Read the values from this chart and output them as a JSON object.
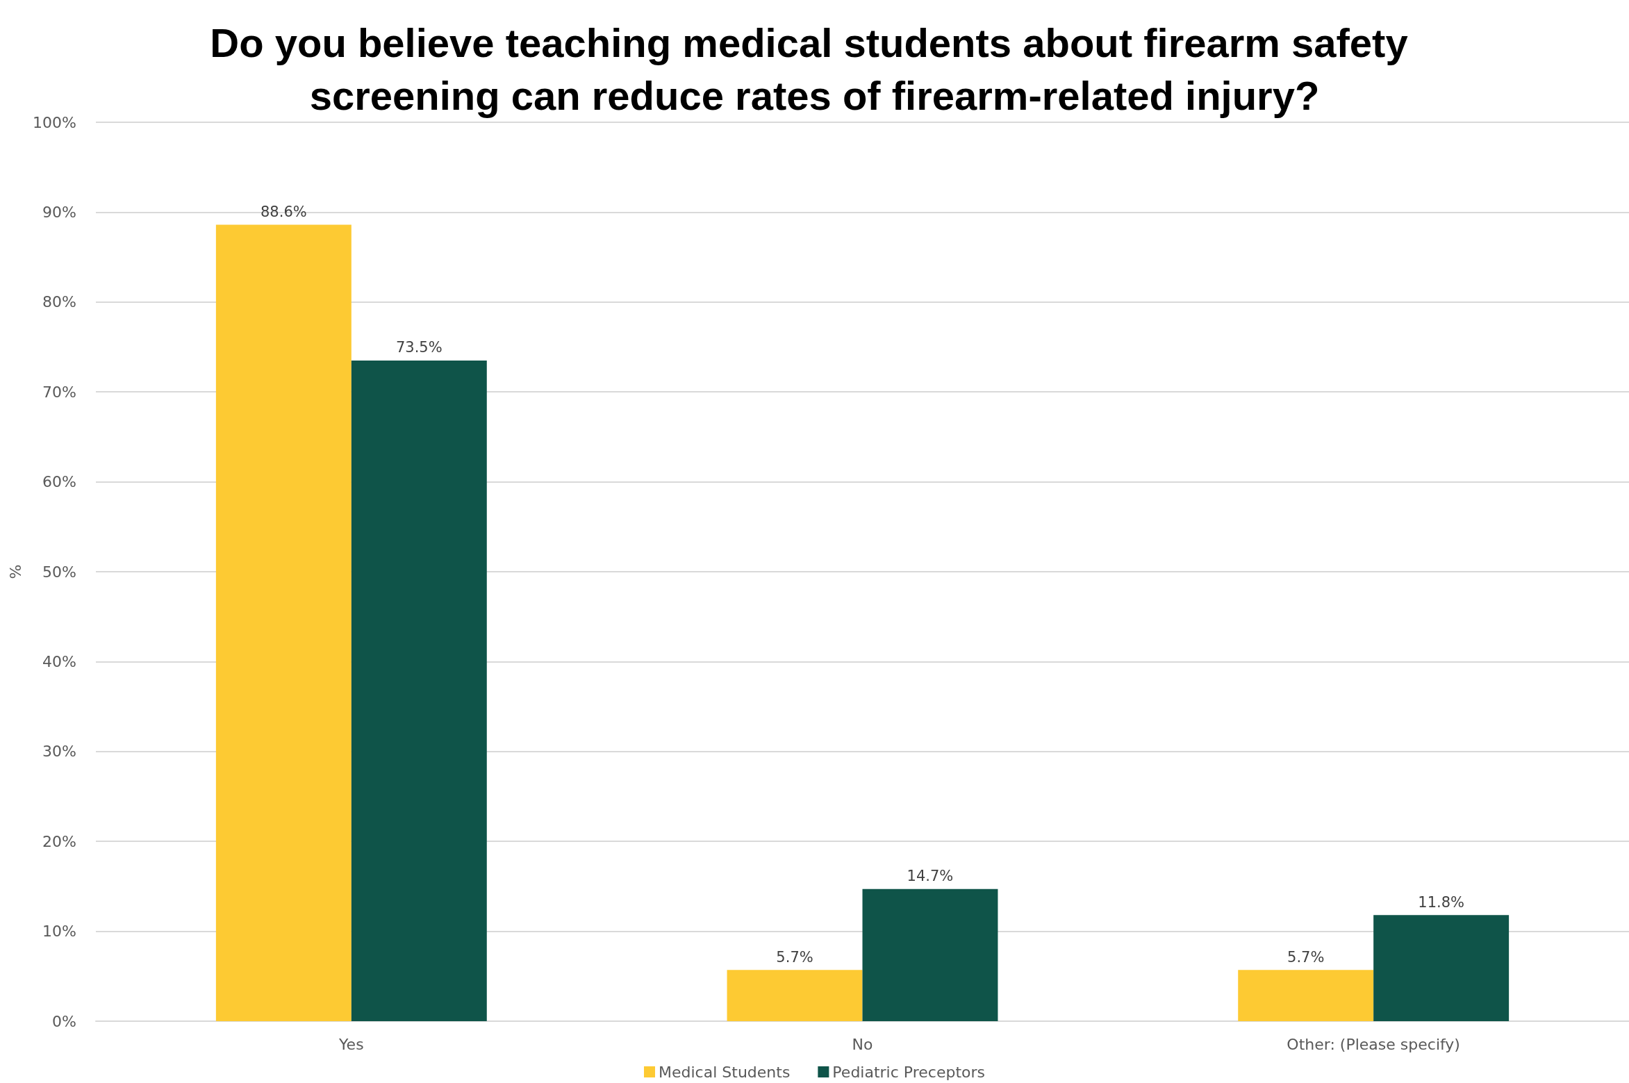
{
  "chart_data": {
    "type": "bar",
    "title": "Do you believe teaching medical students about firearm safety screening can reduce rates of firearm-related injury?",
    "ylabel": "%",
    "categories": [
      "Yes",
      "No",
      "Other: (Please specify)"
    ],
    "series": [
      {
        "name": "Medical Students",
        "color": "#fdca33",
        "values": [
          88.6,
          5.7,
          5.7
        ],
        "value_labels": [
          "88.6%",
          "5.7%",
          "5.7%"
        ]
      },
      {
        "name": "Pediatric Preceptors",
        "color": "#0f5449",
        "values": [
          73.5,
          14.7,
          11.8
        ],
        "value_labels": [
          "73.5%",
          "14.7%",
          "11.8%"
        ]
      }
    ],
    "ylim": [
      0,
      100
    ],
    "yticks": [
      {
        "value": 0,
        "label": "0%"
      },
      {
        "value": 10,
        "label": "10%"
      },
      {
        "value": 20,
        "label": "20%"
      },
      {
        "value": 30,
        "label": "30%"
      },
      {
        "value": 40,
        "label": "40%"
      },
      {
        "value": 50,
        "label": "50%"
      },
      {
        "value": 60,
        "label": "60%"
      },
      {
        "value": 70,
        "label": "70%"
      },
      {
        "value": 80,
        "label": "80%"
      },
      {
        "value": 90,
        "label": "90%"
      },
      {
        "value": 100,
        "label": "100%"
      }
    ],
    "grid": "y",
    "legend": "bottom"
  }
}
